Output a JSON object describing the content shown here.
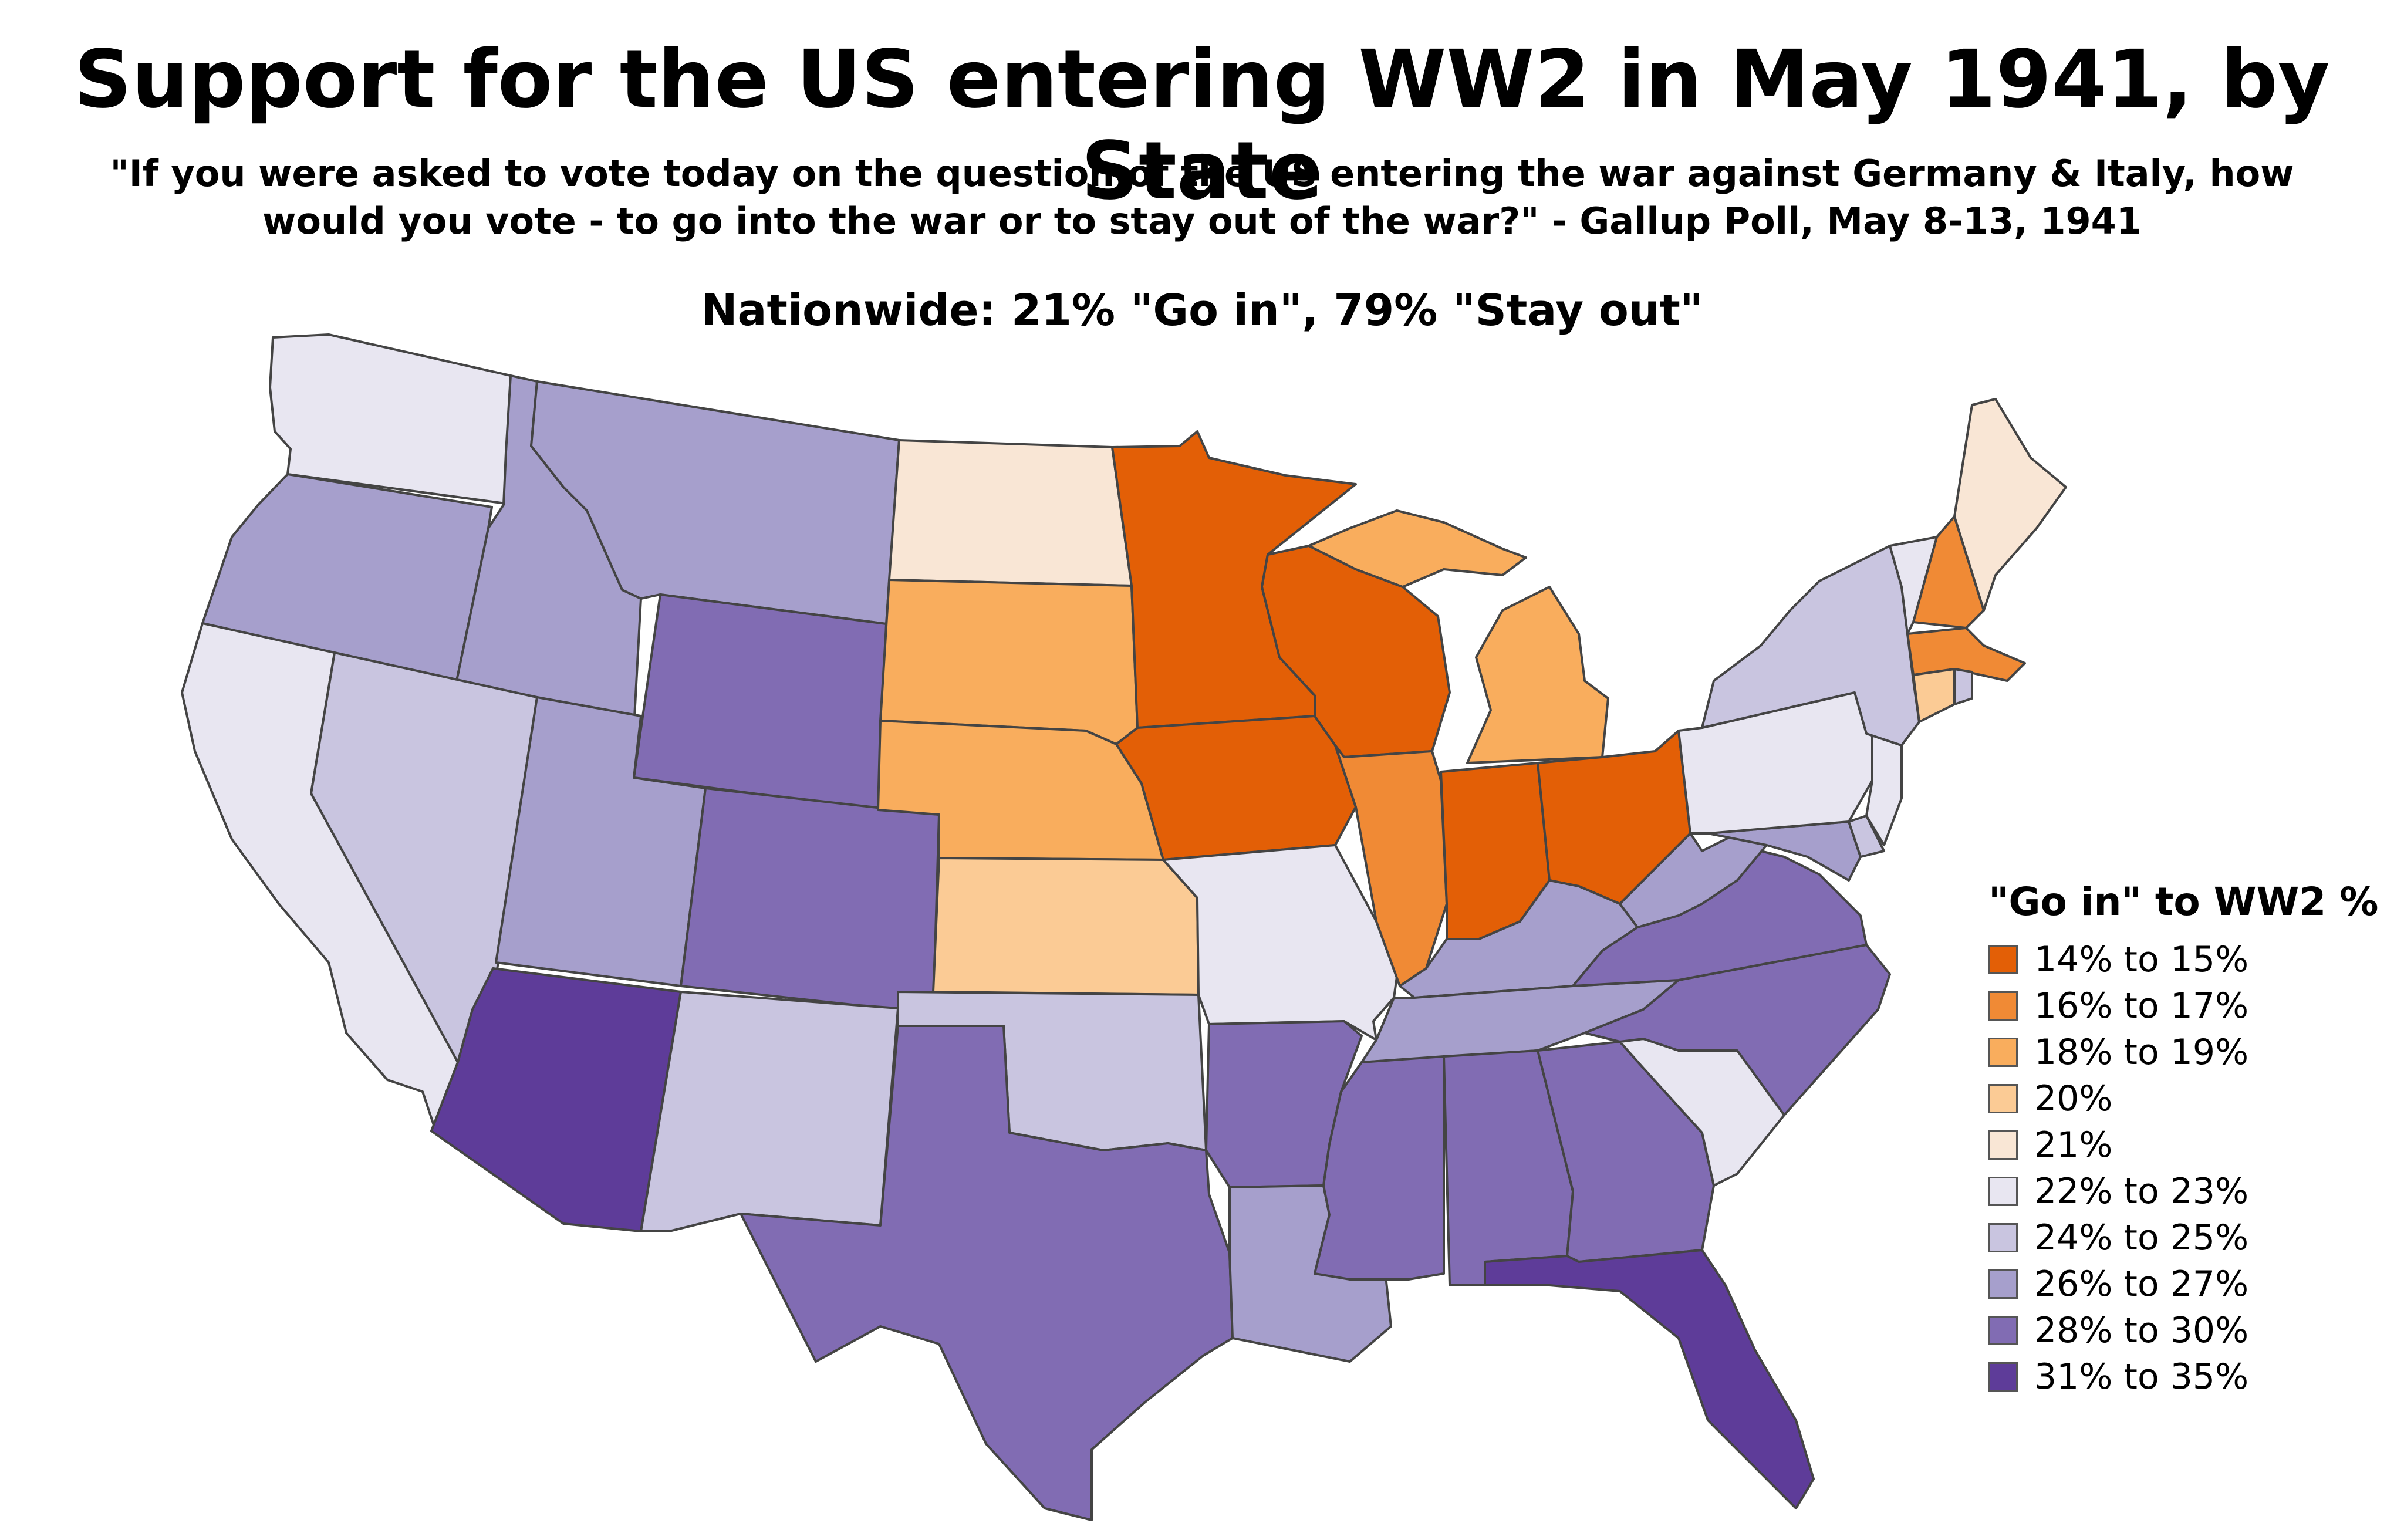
{
  "title": "Support for the US entering WW2 in May 1941, by State",
  "subtitle_lines": [
    "\"If you were asked to vote today on the question of the US entering the war against Germany & Italy, how",
    "would you vote - to go into the war or to stay out of the war?\" - Gallup Poll, May 8-13, 1941"
  ],
  "nationwide": "Nationwide: 21% \"Go in\", 79% \"Stay out\"",
  "legend": {
    "title": "\"Go in\" to WW2 %",
    "items": [
      {
        "label": "14% to 15%",
        "color": "#e35f06"
      },
      {
        "label": "16% to 17%",
        "color": "#f08a35"
      },
      {
        "label": "18% to 19%",
        "color": "#f9ad5d"
      },
      {
        "label": "20%",
        "color": "#fbcb95"
      },
      {
        "label": "21%",
        "color": "#f9e6d5"
      },
      {
        "label": "22% to 23%",
        "color": "#e8e6f1"
      },
      {
        "label": "24% to 25%",
        "color": "#c9c5e0"
      },
      {
        "label": "26% to 27%",
        "color": "#a69fcc"
      },
      {
        "label": "28% to 30%",
        "color": "#816cb3"
      },
      {
        "label": "31% to 35%",
        "color": "#5e3c99"
      }
    ]
  },
  "states": [
    {
      "name": "Washington",
      "bin": 5
    },
    {
      "name": "Oregon",
      "bin": 7
    },
    {
      "name": "California",
      "bin": 5
    },
    {
      "name": "Idaho",
      "bin": 7
    },
    {
      "name": "Nevada",
      "bin": 6
    },
    {
      "name": "Montana",
      "bin": 7
    },
    {
      "name": "Wyoming",
      "bin": 8
    },
    {
      "name": "Utah",
      "bin": 7
    },
    {
      "name": "Arizona",
      "bin": 9
    },
    {
      "name": "Colorado",
      "bin": 8
    },
    {
      "name": "New Mexico",
      "bin": 6
    },
    {
      "name": "North Dakota",
      "bin": 4
    },
    {
      "name": "South Dakota",
      "bin": 2
    },
    {
      "name": "Nebraska",
      "bin": 2
    },
    {
      "name": "Kansas",
      "bin": 3
    },
    {
      "name": "Oklahoma",
      "bin": 6
    },
    {
      "name": "Texas",
      "bin": 8
    },
    {
      "name": "Minnesota",
      "bin": 0
    },
    {
      "name": "Iowa",
      "bin": 0
    },
    {
      "name": "Missouri",
      "bin": 5
    },
    {
      "name": "Arkansas",
      "bin": 8
    },
    {
      "name": "Louisiana",
      "bin": 7
    },
    {
      "name": "Wisconsin",
      "bin": 0
    },
    {
      "name": "Illinois",
      "bin": 1
    },
    {
      "name": "Michigan",
      "bin": 2
    },
    {
      "name": "Indiana",
      "bin": 0
    },
    {
      "name": "Ohio",
      "bin": 0
    },
    {
      "name": "Kentucky",
      "bin": 7
    },
    {
      "name": "Tennessee",
      "bin": 7
    },
    {
      "name": "Mississippi",
      "bin": 8
    },
    {
      "name": "Alabama",
      "bin": 8
    },
    {
      "name": "Georgia",
      "bin": 8
    },
    {
      "name": "Florida",
      "bin": 9
    },
    {
      "name": "South Carolina",
      "bin": 5
    },
    {
      "name": "North Carolina",
      "bin": 8
    },
    {
      "name": "Virginia",
      "bin": 8
    },
    {
      "name": "West Virginia",
      "bin": 7
    },
    {
      "name": "Maryland",
      "bin": 7
    },
    {
      "name": "Delaware",
      "bin": 6
    },
    {
      "name": "New Jersey",
      "bin": 5
    },
    {
      "name": "Pennsylvania",
      "bin": 5
    },
    {
      "name": "New York",
      "bin": 6
    },
    {
      "name": "Vermont",
      "bin": 5
    },
    {
      "name": "New Hampshire",
      "bin": 1
    },
    {
      "name": "Maine",
      "bin": 4
    },
    {
      "name": "Massachusetts",
      "bin": 1
    },
    {
      "name": "Connecticut",
      "bin": 3
    },
    {
      "name": "Rhode Island",
      "bin": 6
    }
  ]
}
